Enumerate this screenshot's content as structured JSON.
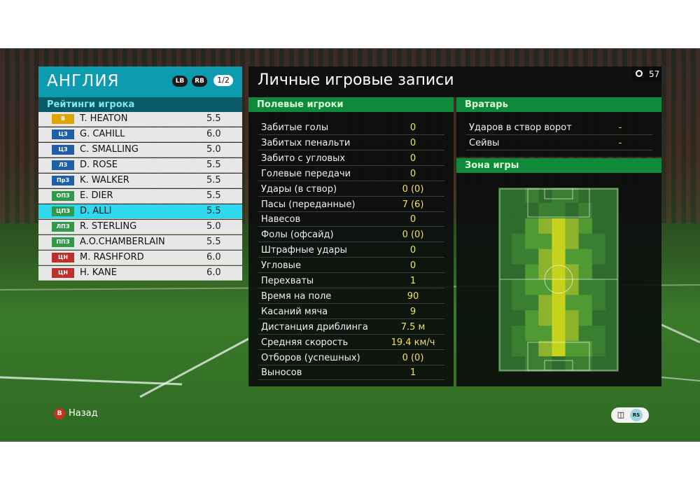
{
  "colors": {
    "accent_cyan": "#0d9bb0",
    "selected_row": "#2fd8ee",
    "section_green": "#0e8a3a",
    "value_yellow": "#f2e25a",
    "badge_gk": "#e0a400",
    "badge_def": "#1f5fa8",
    "badge_mid": "#2e9a4a",
    "badge_fwd": "#c0302a"
  },
  "team": {
    "name": "АНГЛИЯ",
    "lb": "LB",
    "rb": "RB",
    "page": "1/2",
    "ratings_title": "Рейтинги игрока"
  },
  "players": [
    {
      "pos": "В",
      "name": "T. HEATON",
      "rating": "5.5",
      "badge": "#e0a400"
    },
    {
      "pos": "ЦЗ",
      "name": "G. CAHILL",
      "rating": "6.0",
      "badge": "#1f5fa8"
    },
    {
      "pos": "ЦЗ",
      "name": "C. SMALLING",
      "rating": "5.0",
      "badge": "#1f5fa8"
    },
    {
      "pos": "ЛЗ",
      "name": "D. ROSE",
      "rating": "5.5",
      "badge": "#1f5fa8"
    },
    {
      "pos": "ПрЗ",
      "name": "K. WALKER",
      "rating": "5.5",
      "badge": "#1f5fa8"
    },
    {
      "pos": "ОПЗ",
      "name": "E. DIER",
      "rating": "5.5",
      "badge": "#2e9a4a"
    },
    {
      "pos": "ЦПЗ",
      "name": "D. ALLI",
      "rating": "5.5",
      "badge": "#2e9a4a",
      "selected": true
    },
    {
      "pos": "ЛПЗ",
      "name": "R. STERLING",
      "rating": "5.0",
      "badge": "#2e9a4a"
    },
    {
      "pos": "ППЗ",
      "name": "A.O.CHAMBERLAIN",
      "rating": "5.5",
      "badge": "#2e9a4a"
    },
    {
      "pos": "ЦН",
      "name": "M. RASHFORD",
      "rating": "6.0",
      "badge": "#c0302a"
    },
    {
      "pos": "ЦН",
      "name": "H. KANE",
      "rating": "6.0",
      "badge": "#c0302a"
    }
  ],
  "stats": {
    "title": "Личные игровые записи",
    "timer": "57",
    "field_heading": "Полевые игроки",
    "field": [
      {
        "label": "Забитые голы",
        "value": "0"
      },
      {
        "label": "Забитых пенальти",
        "value": "0"
      },
      {
        "label": "Забито с угловых",
        "value": "0"
      },
      {
        "label": "Голевые передачи",
        "value": "0"
      },
      {
        "label": "Удары (в створ)",
        "value": "0 (0)"
      },
      {
        "label": "Пасы (переданные)",
        "value": "7 (6)"
      },
      {
        "label": "Навесов",
        "value": "0"
      },
      {
        "label": "Фолы (офсайд)",
        "value": "0 (0)"
      },
      {
        "label": "Штрафные удары",
        "value": "0"
      },
      {
        "label": "Угловые",
        "value": "0"
      },
      {
        "label": "Перехваты",
        "value": "1"
      },
      {
        "label": "Время на поле",
        "value": "90"
      },
      {
        "label": "Касаний мяча",
        "value": "9"
      },
      {
        "label": "Дистанция дриблинга",
        "value": "7.5 м"
      },
      {
        "label": "Средняя скорость",
        "value": "19.4 км/ч"
      },
      {
        "label": "Отборов (успешных)",
        "value": "0 (0)"
      },
      {
        "label": "Выносов",
        "value": "1"
      }
    ],
    "gk_heading": "Вратарь",
    "gk": [
      {
        "label": "Ударов в створ ворот",
        "value": "-"
      },
      {
        "label": "Сейвы",
        "value": "-"
      }
    ],
    "zone_heading": "Зона игры"
  },
  "footer": {
    "back_key": "B",
    "back_label": "Назад",
    "chat_icon": "chat-bubble-icon",
    "rs_key": "RS"
  }
}
